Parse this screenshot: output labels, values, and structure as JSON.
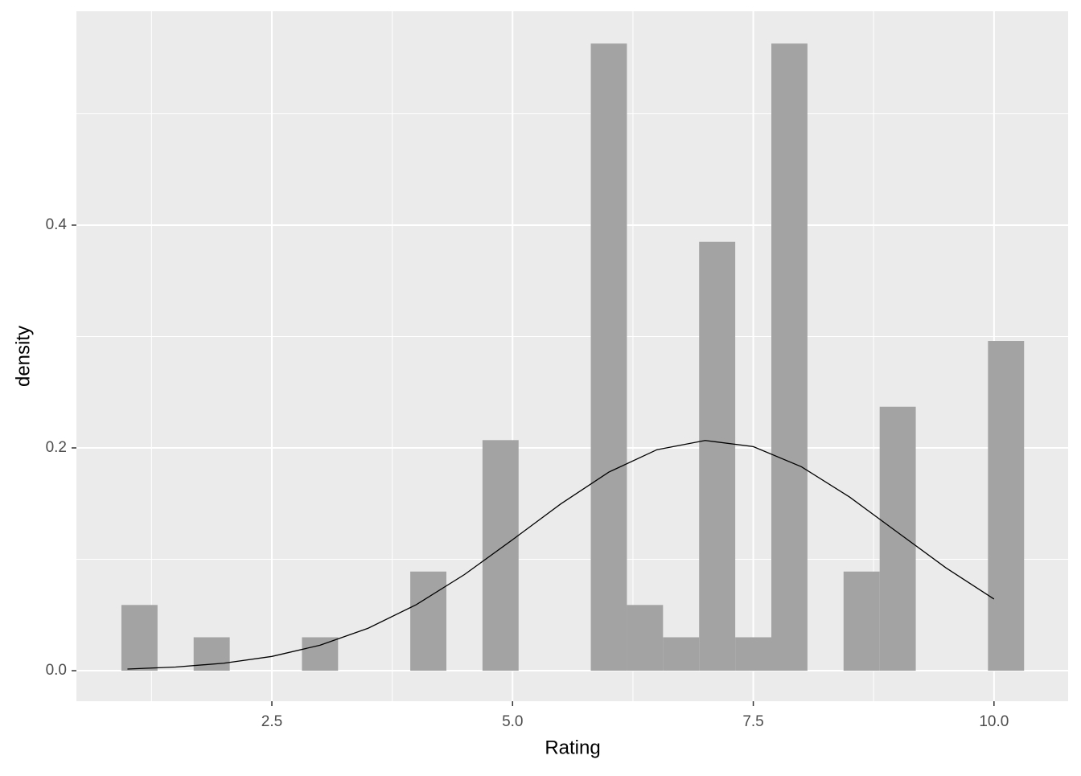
{
  "chart_data": {
    "type": "histogram",
    "xlabel": "Rating",
    "ylabel": "density",
    "bins": [
      0.9375,
      1.3125,
      1.6875,
      2.0625,
      2.4375,
      2.8125,
      3.1875,
      3.5625,
      3.9375,
      4.3125,
      4.6875,
      5.0625,
      5.4375,
      5.8125,
      6.1875,
      6.5625,
      6.9375,
      7.3125,
      7.6875,
      8.0625,
      8.4375,
      8.8125,
      9.1875,
      9.5625,
      9.9375,
      10.3125
    ],
    "values": [
      0.059,
      0,
      0.03,
      0,
      0,
      0.03,
      0,
      0,
      0.089,
      0,
      0.207,
      0,
      0,
      0.563,
      0.059,
      0.03,
      0.385,
      0.03,
      0.563,
      0,
      0.089,
      0.237,
      0,
      0,
      0.296
    ],
    "color": "#a3a3a3",
    "density_curve": {
      "x": [
        1,
        1.5,
        2,
        2.5,
        3,
        3.5,
        4,
        4.5,
        5,
        5.5,
        6,
        6.5,
        7,
        7.5,
        8,
        8.5,
        9,
        9.5,
        10
      ],
      "values": [
        0.0015,
        0.0033,
        0.0067,
        0.0128,
        0.0229,
        0.0381,
        0.0593,
        0.0863,
        0.1176,
        0.1497,
        0.1783,
        0.1984,
        0.2067,
        0.2012,
        0.1831,
        0.1559,
        0.1241,
        0.0924,
        0.0643
      ],
      "color": "#000000"
    },
    "xlim": [
      0.47,
      10.77
    ],
    "ylim": [
      -0.0274,
      0.592
    ],
    "xticks": [
      {
        "value": 2.5,
        "label": "2.5"
      },
      {
        "value": 5,
        "label": "5.0"
      },
      {
        "value": 7.5,
        "label": "7.5"
      },
      {
        "value": 10,
        "label": "10.0"
      }
    ],
    "yticks": [
      {
        "value": 0,
        "label": "0.0"
      },
      0.2,
      0.4
    ],
    "grid": true
  }
}
